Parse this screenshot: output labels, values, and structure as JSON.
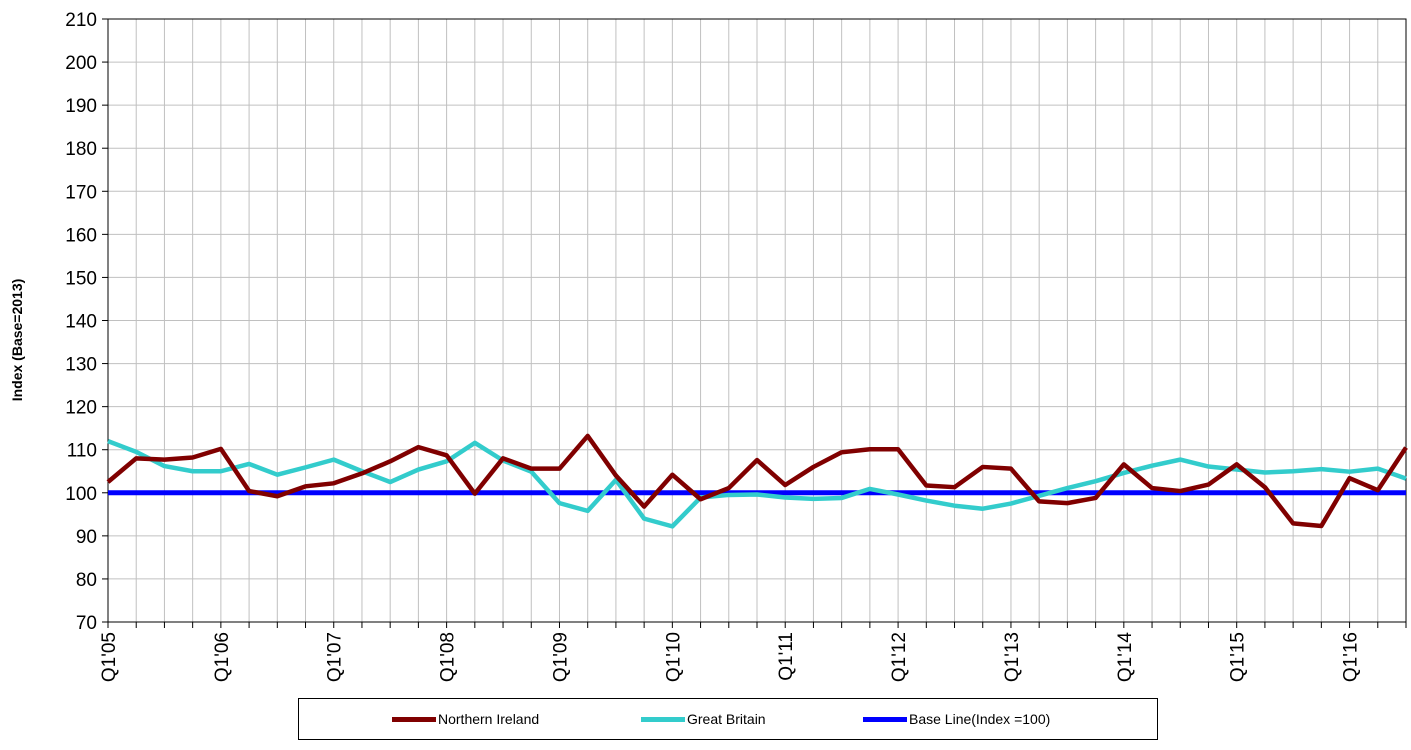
{
  "chart_data": {
    "type": "line",
    "ylabel": "Index (Base=2013)",
    "xlabel": "",
    "ylim": [
      70,
      210
    ],
    "yticks": [
      70,
      80,
      90,
      100,
      110,
      120,
      130,
      140,
      150,
      160,
      170,
      180,
      190,
      200,
      210
    ],
    "grid": true,
    "legend_position": "bottom",
    "categories": [
      "Q1'05",
      "Q2'05",
      "Q3'05",
      "Q4'05",
      "Q1'06",
      "Q2'06",
      "Q3'06",
      "Q4'06",
      "Q1'07",
      "Q2'07",
      "Q3'07",
      "Q4'07",
      "Q1'08",
      "Q2'08",
      "Q3'08",
      "Q4'08",
      "Q1'09",
      "Q2'09",
      "Q3'09",
      "Q4'09",
      "Q1'10",
      "Q2'10",
      "Q3'10",
      "Q4'10",
      "Q1'11",
      "Q2'11",
      "Q3'11",
      "Q4'11",
      "Q1'12",
      "Q2'12",
      "Q3'12",
      "Q4'12",
      "Q1'13",
      "Q2'13",
      "Q3'13",
      "Q4'13",
      "Q1'14",
      "Q2'14",
      "Q3'14",
      "Q4'14",
      "Q1'15",
      "Q2'15",
      "Q3'15",
      "Q4'15",
      "Q1'16",
      "Q2'16",
      "Q3'16"
    ],
    "tick_labels": [
      "Q1'05",
      "Q1'06",
      "Q1'07",
      "Q1'08",
      "Q1'09",
      "Q1'10",
      "Q1'11",
      "Q1'12",
      "Q1'13",
      "Q1'14",
      "Q1'15",
      "Q1'16"
    ],
    "series": [
      {
        "name": "Northern Ireland",
        "color": "#800000",
        "values": [
          102.5,
          108,
          107.7,
          108.2,
          110.2,
          100.4,
          99.2,
          101.5,
          102.2,
          104.5,
          107.3,
          110.6,
          108.7,
          99.8,
          108,
          105.6,
          105.6,
          113.2,
          104,
          96.8,
          104.2,
          98.5,
          101.1,
          107.6,
          101.8,
          106,
          109.4,
          110.1,
          110.1,
          101.7,
          101.3,
          106,
          105.6,
          98,
          97.6,
          98.8,
          106.6,
          101.1,
          100.4,
          101.9,
          106.6,
          101.3,
          92.9,
          92.3,
          103.4,
          100.6,
          110.5
        ]
      },
      {
        "name": "Great Britain",
        "color": "#33CCCC",
        "values": [
          112,
          109.5,
          106.2,
          105,
          105,
          106.7,
          104.2,
          105.9,
          107.7,
          105,
          102.5,
          105.4,
          107.3,
          111.6,
          107.5,
          104.9,
          97.6,
          95.8,
          103,
          94,
          92.2,
          98.9,
          99.5,
          99.6,
          98.9,
          98.6,
          98.8,
          100.9,
          99.6,
          98.2,
          97,
          96.3,
          97.5,
          99.3,
          101.1,
          102.7,
          104.6,
          106.3,
          107.7,
          106.1,
          105.4,
          104.7,
          105,
          105.5,
          104.9,
          105.6,
          103.3
        ]
      },
      {
        "name": "Base Line(Index =100)",
        "color": "#0000FF",
        "values": [
          100,
          100,
          100,
          100,
          100,
          100,
          100,
          100,
          100,
          100,
          100,
          100,
          100,
          100,
          100,
          100,
          100,
          100,
          100,
          100,
          100,
          100,
          100,
          100,
          100,
          100,
          100,
          100,
          100,
          100,
          100,
          100,
          100,
          100,
          100,
          100,
          100,
          100,
          100,
          100,
          100,
          100,
          100,
          100,
          100,
          100,
          100
        ]
      }
    ]
  }
}
